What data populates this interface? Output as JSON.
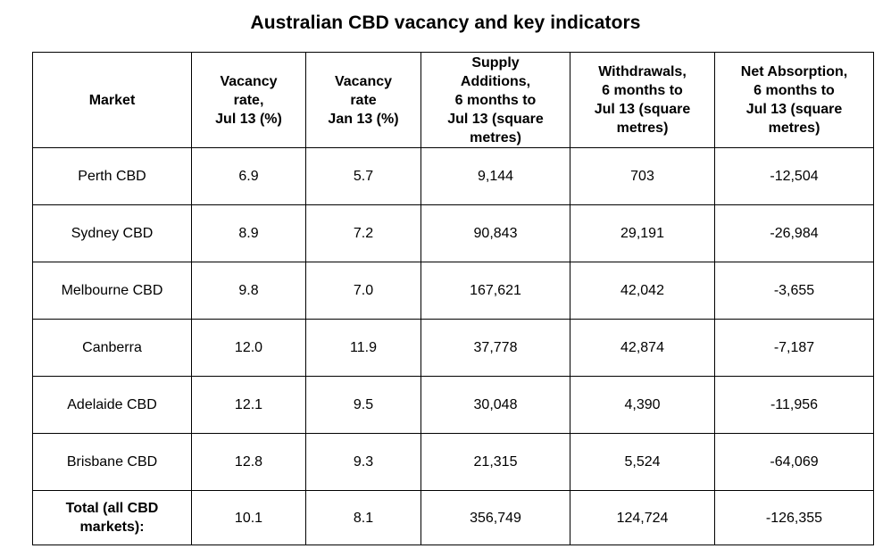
{
  "title": "Australian CBD vacancy and key indicators",
  "table": {
    "headers": [
      "Market",
      "Vacancy\nrate,\nJul 13 (%)",
      "Vacancy\nrate\nJan 13 (%)",
      "Supply\nAdditions,\n6 months to\nJul 13 (square\nmetres)",
      "Withdrawals,\n6 months to\nJul 13 (square\nmetres)",
      "Net Absorption,\n6 months to\nJul 13 (square\nmetres)"
    ],
    "rows": [
      [
        "Perth CBD",
        "6.9",
        "5.7",
        "9,144",
        "703",
        "-12,504"
      ],
      [
        "Sydney CBD",
        "8.9",
        "7.2",
        "90,843",
        "29,191",
        "-26,984"
      ],
      [
        "Melbourne CBD",
        "9.8",
        "7.0",
        "167,621",
        "42,042",
        "-3,655"
      ],
      [
        "Canberra",
        "12.0",
        "11.9",
        "37,778",
        "42,874",
        "-7,187"
      ],
      [
        "Adelaide CBD",
        "12.1",
        "9.5",
        "30,048",
        "4,390",
        "-11,956"
      ],
      [
        "Brisbane CBD",
        "12.8",
        "9.3",
        "21,315",
        "5,524",
        "-64,069"
      ]
    ],
    "total": [
      "Total (all CBD\nmarkets):",
      "10.1",
      "8.1",
      "356,749",
      "124,724",
      "-126,355"
    ]
  }
}
